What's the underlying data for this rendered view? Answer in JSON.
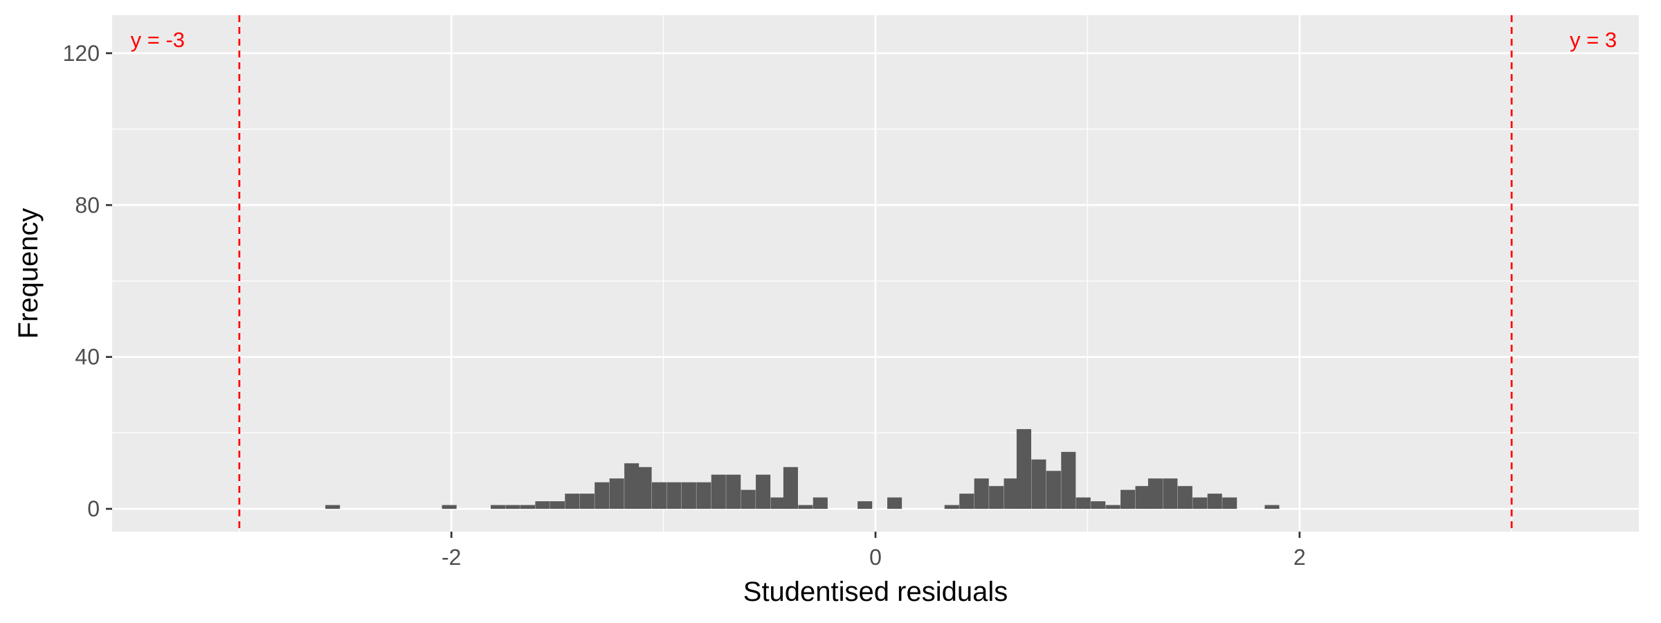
{
  "chart_data": {
    "type": "bar",
    "subtype": "histogram",
    "title": "",
    "xlabel": "Studentised residuals",
    "ylabel": "Frequency",
    "xlim": [
      -3.6,
      3.6
    ],
    "ylim": [
      -6,
      130
    ],
    "x_ticks": [
      -2,
      0,
      2
    ],
    "x_tick_labels": [
      "-2",
      "0",
      "2"
    ],
    "y_ticks": [
      0,
      40,
      80,
      120
    ],
    "y_tick_labels": [
      "0",
      "40",
      "80",
      "120"
    ],
    "grid": true,
    "bin_width": 0.0688,
    "bar_color": "#595959",
    "panel_color": "#EBEBEB",
    "bins": [
      {
        "x": -2.56,
        "count": 1
      },
      {
        "x": -2.01,
        "count": 1
      },
      {
        "x": -1.78,
        "count": 1
      },
      {
        "x": -1.71,
        "count": 1
      },
      {
        "x": -1.64,
        "count": 1
      },
      {
        "x": -1.57,
        "count": 2
      },
      {
        "x": -1.5,
        "count": 2
      },
      {
        "x": -1.43,
        "count": 4
      },
      {
        "x": -1.36,
        "count": 4
      },
      {
        "x": -1.29,
        "count": 7
      },
      {
        "x": -1.22,
        "count": 8
      },
      {
        "x": -1.15,
        "count": 12
      },
      {
        "x": -1.09,
        "count": 11
      },
      {
        "x": -1.02,
        "count": 7
      },
      {
        "x": -0.95,
        "count": 7
      },
      {
        "x": -0.88,
        "count": 7
      },
      {
        "x": -0.81,
        "count": 7
      },
      {
        "x": -0.74,
        "count": 9
      },
      {
        "x": -0.67,
        "count": 9
      },
      {
        "x": -0.6,
        "count": 5
      },
      {
        "x": -0.53,
        "count": 9
      },
      {
        "x": -0.46,
        "count": 3
      },
      {
        "x": -0.4,
        "count": 11
      },
      {
        "x": -0.33,
        "count": 1
      },
      {
        "x": -0.26,
        "count": 3
      },
      {
        "x": -0.05,
        "count": 2
      },
      {
        "x": 0.09,
        "count": 3
      },
      {
        "x": 0.36,
        "count": 1
      },
      {
        "x": 0.43,
        "count": 4
      },
      {
        "x": 0.5,
        "count": 8
      },
      {
        "x": 0.57,
        "count": 6
      },
      {
        "x": 0.64,
        "count": 8
      },
      {
        "x": 0.7,
        "count": 21
      },
      {
        "x": 0.77,
        "count": 13
      },
      {
        "x": 0.84,
        "count": 10
      },
      {
        "x": 0.91,
        "count": 15
      },
      {
        "x": 0.98,
        "count": 3
      },
      {
        "x": 1.05,
        "count": 2
      },
      {
        "x": 1.12,
        "count": 1
      },
      {
        "x": 1.19,
        "count": 5
      },
      {
        "x": 1.26,
        "count": 6
      },
      {
        "x": 1.32,
        "count": 8
      },
      {
        "x": 1.39,
        "count": 8
      },
      {
        "x": 1.46,
        "count": 6
      },
      {
        "x": 1.53,
        "count": 3
      },
      {
        "x": 1.6,
        "count": 4
      },
      {
        "x": 1.67,
        "count": 3
      },
      {
        "x": 1.87,
        "count": 1
      }
    ],
    "reference_lines": [
      {
        "x": -3,
        "label": "y = -3",
        "color": "#FF0000",
        "style": "dashed"
      },
      {
        "x": 3,
        "label": "y = 3",
        "color": "#FF0000",
        "style": "dashed"
      }
    ]
  }
}
